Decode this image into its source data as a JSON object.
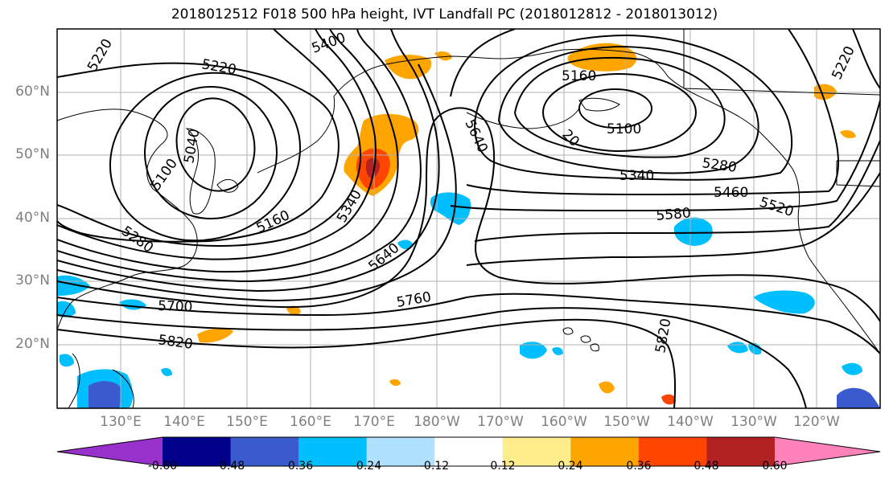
{
  "title": "2018012512 F018 500 hPa height, IVT Landfall PC (2018012812 - 2018013012)",
  "map": {
    "lat_labels": [
      {
        "text": "60°N",
        "value": 60
      },
      {
        "text": "50°N",
        "value": 50
      },
      {
        "text": "40°N",
        "value": 40
      },
      {
        "text": "30°N",
        "value": 30
      },
      {
        "text": "20°N",
        "value": 20
      }
    ],
    "lon_labels": [
      "130°E",
      "140°E",
      "150°E",
      "160°E",
      "170°E",
      "180°W",
      "170°W",
      "160°W",
      "150°W",
      "140°W",
      "130°W",
      "120°W"
    ],
    "contour_labels": [
      "5220",
      "5220",
      "5400",
      "5160",
      "5040",
      "5100",
      "5100",
      "5640",
      "5280",
      "5340",
      "5460",
      "5520",
      "5580",
      "5160",
      "5340",
      "5280",
      "5640",
      "5700",
      "5760",
      "5820",
      "5820",
      "5220",
      "20"
    ]
  },
  "colorbar": {
    "colors": [
      "#9932cc",
      "#00008b",
      "#3a5bcd",
      "#00bfff",
      "#b0e2ff",
      "#ffffff",
      "#ffec8b",
      "#ffa500",
      "#ff4500",
      "#b22222",
      "#ff83ba"
    ],
    "tick_labels": [
      "-0.60",
      "-0.48",
      "-0.36",
      "-0.24",
      "-0.12",
      "0.12",
      "0.24",
      "0.36",
      "0.48",
      "0.60"
    ]
  }
}
